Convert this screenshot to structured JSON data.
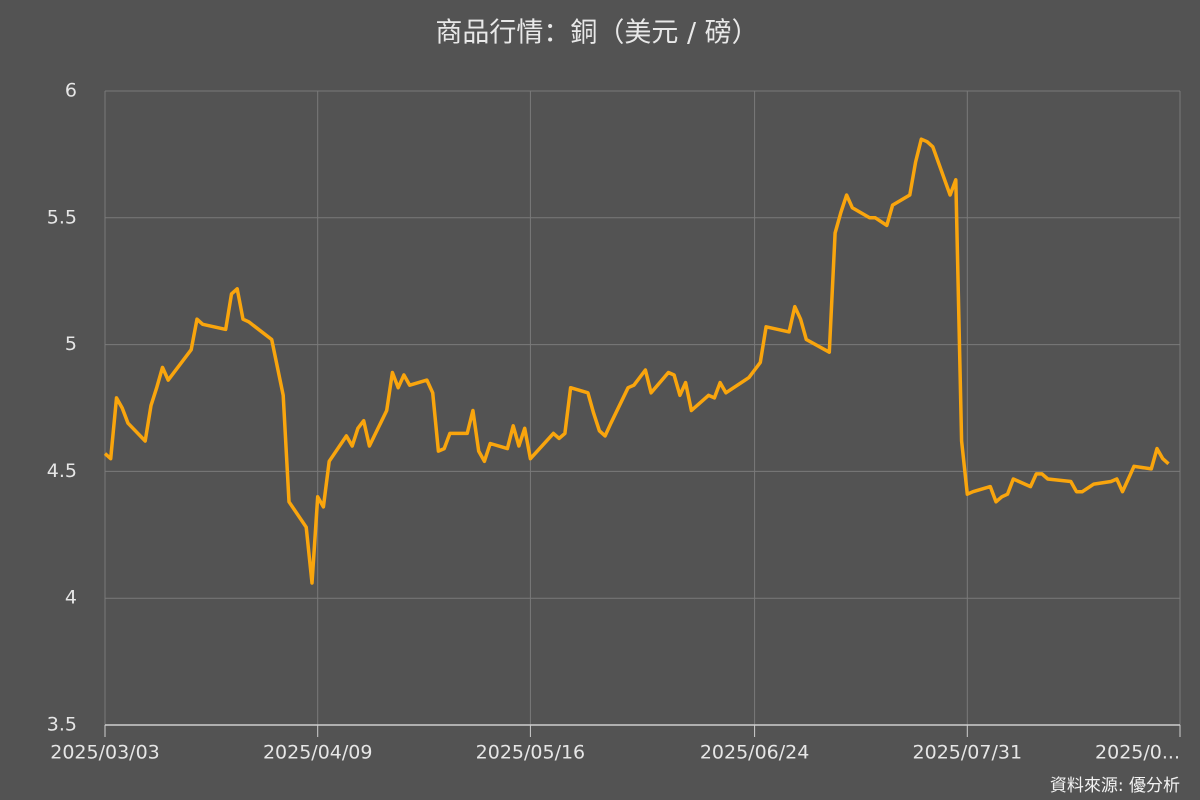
{
  "chart_data": {
    "type": "line",
    "title": "商品行情：銅（美元 / 磅）",
    "source": "資料來源: 優分析",
    "color": "#f9a50d",
    "grid": true,
    "x": [
      "2025-03-03",
      "2025-03-04",
      "2025-03-05",
      "2025-03-06",
      "2025-03-07",
      "2025-03-10",
      "2025-03-11",
      "2025-03-12",
      "2025-03-13",
      "2025-03-14",
      "2025-03-18",
      "2025-03-19",
      "2025-03-20",
      "2025-03-24",
      "2025-03-25",
      "2025-03-26",
      "2025-03-27",
      "2025-03-28",
      "2025-04-01",
      "2025-04-03",
      "2025-04-04",
      "2025-04-07",
      "2025-04-08",
      "2025-04-09",
      "2025-04-10",
      "2025-04-11",
      "2025-04-14",
      "2025-04-15",
      "2025-04-16",
      "2025-04-17",
      "2025-04-18",
      "2025-04-21",
      "2025-04-22",
      "2025-04-23",
      "2025-04-24",
      "2025-04-25",
      "2025-04-28",
      "2025-04-29",
      "2025-04-30",
      "2025-05-01",
      "2025-05-02",
      "2025-05-05",
      "2025-05-06",
      "2025-05-07",
      "2025-05-08",
      "2025-05-09",
      "2025-05-12",
      "2025-05-13",
      "2025-05-14",
      "2025-05-15",
      "2025-05-16",
      "2025-05-20",
      "2025-05-21",
      "2025-05-22",
      "2025-05-23",
      "2025-05-26",
      "2025-05-27",
      "2025-05-28",
      "2025-05-29",
      "2025-05-30",
      "2025-06-02",
      "2025-06-03",
      "2025-06-05",
      "2025-06-06",
      "2025-06-09",
      "2025-06-10",
      "2025-06-11",
      "2025-06-12",
      "2025-06-13",
      "2025-06-16",
      "2025-06-17",
      "2025-06-18",
      "2025-06-19",
      "2025-06-23",
      "2025-06-24",
      "2025-06-25",
      "2025-06-26",
      "2025-06-30",
      "2025-07-01",
      "2025-07-02",
      "2025-07-03",
      "2025-07-07",
      "2025-07-08",
      "2025-07-09",
      "2025-07-10",
      "2025-07-11",
      "2025-07-14",
      "2025-07-15",
      "2025-07-17",
      "2025-07-18",
      "2025-07-21",
      "2025-07-22",
      "2025-07-23",
      "2025-07-24",
      "2025-07-25",
      "2025-07-28",
      "2025-07-29",
      "2025-07-30",
      "2025-07-31",
      "2025-08-01",
      "2025-08-04",
      "2025-08-05",
      "2025-08-06",
      "2025-08-07",
      "2025-08-08",
      "2025-08-11",
      "2025-08-12",
      "2025-08-13",
      "2025-08-14",
      "2025-08-18",
      "2025-08-19",
      "2025-08-20",
      "2025-08-22",
      "2025-08-25",
      "2025-08-26",
      "2025-08-27",
      "2025-08-28",
      "2025-08-29",
      "2025-09-01",
      "2025-09-02",
      "2025-09-03",
      "2025-09-04"
    ],
    "values": [
      4.57,
      4.55,
      4.79,
      4.75,
      4.69,
      4.62,
      4.76,
      4.83,
      4.91,
      4.86,
      4.98,
      5.1,
      5.08,
      5.06,
      5.2,
      5.22,
      5.1,
      5.09,
      5.02,
      4.8,
      4.38,
      4.28,
      4.06,
      4.4,
      4.36,
      4.54,
      4.64,
      4.6,
      4.67,
      4.7,
      4.6,
      4.74,
      4.89,
      4.83,
      4.88,
      4.84,
      4.86,
      4.81,
      4.58,
      4.59,
      4.65,
      4.65,
      4.74,
      4.58,
      4.54,
      4.61,
      4.59,
      4.68,
      4.6,
      4.67,
      4.55,
      4.65,
      4.63,
      4.65,
      4.83,
      4.81,
      4.73,
      4.66,
      4.64,
      4.69,
      4.83,
      4.84,
      4.9,
      4.81,
      4.89,
      4.88,
      4.8,
      4.85,
      4.74,
      4.8,
      4.79,
      4.85,
      4.81,
      4.87,
      4.9,
      4.93,
      5.07,
      5.05,
      5.15,
      5.1,
      5.02,
      4.97,
      5.44,
      5.52,
      5.59,
      5.54,
      5.5,
      5.5,
      5.47,
      5.55,
      5.59,
      5.72,
      5.81,
      5.8,
      5.78,
      5.59,
      5.65,
      4.62,
      4.41,
      4.42,
      4.44,
      4.38,
      4.4,
      4.41,
      4.47,
      4.44,
      4.49,
      4.49,
      4.47,
      4.46,
      4.42,
      4.42,
      4.45,
      4.46,
      4.47,
      4.42,
      4.47,
      4.52,
      4.51,
      4.59,
      4.55,
      4.53
    ],
    "xlim": [
      "2025-03-03",
      "2025-09-06"
    ],
    "xticks": [
      {
        "value": "2025-03-03",
        "label": "2025/03/03"
      },
      {
        "value": "2025-04-09",
        "label": "2025/04/09"
      },
      {
        "value": "2025-05-16",
        "label": "2025/05/16"
      },
      {
        "value": "2025-06-24",
        "label": "2025/06/24"
      },
      {
        "value": "2025-07-31",
        "label": "2025/07/31"
      },
      {
        "value": "2025-09-06",
        "label": "2025/0..."
      }
    ],
    "ylim": [
      3.5,
      6
    ],
    "yticks": [
      3.5,
      4,
      4.5,
      5,
      5.5,
      6
    ]
  }
}
